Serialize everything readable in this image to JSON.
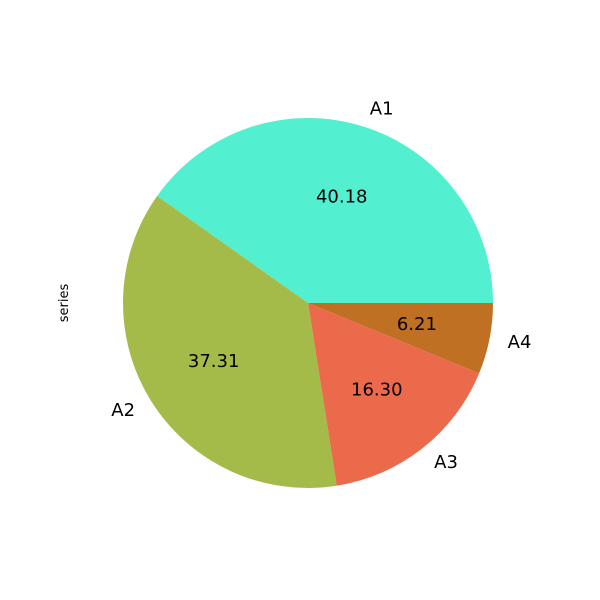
{
  "chart_data": {
    "type": "pie",
    "title": "",
    "ylabel": "series",
    "start_angle_deg": 0,
    "direction": "counterclockwise",
    "categories": [
      "A1",
      "A2",
      "A3",
      "A4"
    ],
    "values": [
      40.18,
      37.31,
      16.3,
      6.21
    ],
    "value_labels": [
      "40.18",
      "37.31",
      "16.30",
      "6.21"
    ],
    "colors": [
      "#52f0d0",
      "#a4bb4a",
      "#ec6a4c",
      "#bf7022"
    ]
  }
}
